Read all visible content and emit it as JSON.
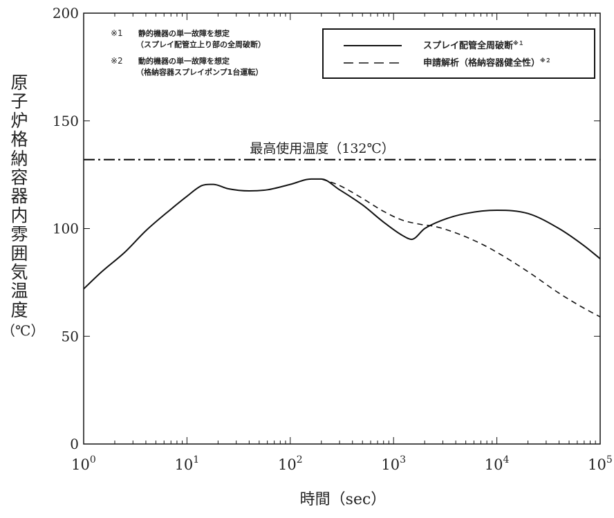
{
  "chart_data": {
    "type": "line",
    "xlabel": "時間（sec）",
    "ylabel": "原子炉格納容器内雰囲気温度",
    "ylabel_unit": "（℃）",
    "x_scale": "log",
    "xlim": [
      1,
      100000
    ],
    "ylim": [
      0,
      200
    ],
    "x_ticks": [
      {
        "base": "10",
        "exp": "0"
      },
      {
        "base": "10",
        "exp": "1"
      },
      {
        "base": "10",
        "exp": "2"
      },
      {
        "base": "10",
        "exp": "3"
      },
      {
        "base": "10",
        "exp": "4"
      },
      {
        "base": "10",
        "exp": "5"
      }
    ],
    "y_ticks": [
      "0",
      "50",
      "100",
      "150",
      "200"
    ],
    "grid": false,
    "legend_position": "top-right",
    "series": [
      {
        "name": "スプレイ配管全周破断",
        "name_suffix": "※１",
        "style": "solid",
        "x": [
          1,
          1.5,
          2.5,
          4,
          7,
          10,
          14,
          18,
          25,
          40,
          60,
          100,
          160,
          200,
          300,
          500,
          800,
          1200,
          1500,
          2000,
          3000,
          5000,
          10000,
          20000,
          40000,
          70000,
          100000
        ],
        "y": [
          72,
          80,
          89,
          99,
          109,
          115,
          120,
          120.5,
          118.5,
          117.5,
          118,
          120.5,
          123,
          123,
          118,
          111,
          103,
          97,
          95,
          100,
          104,
          107,
          108.5,
          107,
          100,
          92,
          86
        ]
      },
      {
        "name": "申請解析（格納容器健全性）",
        "name_suffix": "※２",
        "style": "dashed",
        "x": [
          200,
          300,
          500,
          800,
          1200,
          1800,
          2500,
          4000,
          7000,
          10000,
          20000,
          40000,
          70000,
          100000
        ],
        "y": [
          123,
          120,
          114,
          108,
          104,
          102,
          101,
          98,
          93,
          89,
          80,
          70,
          63,
          59
        ]
      }
    ],
    "reference_line": {
      "y": 132,
      "style": "dash-dot",
      "label": "最高使用温度（132℃）"
    },
    "annotations": [
      {
        "marker": "※1",
        "lines": [
          "静的機器の単一故障を想定",
          "（スプレイ配管立上り部の全周破断）"
        ]
      },
      {
        "marker": "※2",
        "lines": [
          "動的機器の単一故障を想定",
          "（格納容器スプレイポンプ1台運転）"
        ]
      }
    ]
  }
}
